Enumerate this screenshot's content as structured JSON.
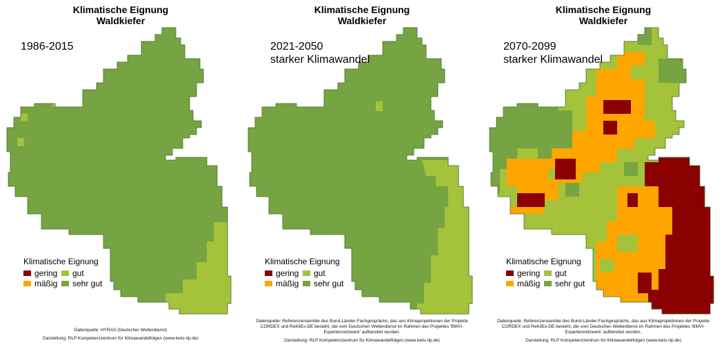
{
  "colors": {
    "gering": "#8b0000",
    "maessig": "#ffa500",
    "gut": "#a4c23a",
    "sehr_gut": "#77a442",
    "border": "#3d6b2a"
  },
  "legend": {
    "title": "Klimatische Eignung",
    "items": [
      "gering",
      "mäßig",
      "gut",
      "sehr gut"
    ]
  },
  "panels": [
    {
      "title_line1": "Klimatische Eignung",
      "title_line2": "Waldkiefer",
      "period": "1986-2015",
      "scenario": "",
      "credit_source": "Datenquelle: HYRAS (Deutscher Wetterdienst)",
      "credit_display": "Darstellung: RLP Kompetenzzentrum für Klimawandelfolgen (www.kwis-rlp.de)"
    },
    {
      "title_line1": "Klimatische Eignung",
      "title_line2": "Waldkiefer",
      "period": "2021-2050",
      "scenario": "starker Klimawandel",
      "credit_source": "Datenquelle: Referenzensemble des Bund-Länder-Fachgesprächs, das aus Klimaprojektionen der Projekte CORDEX und ReKliEs-DE besteht, die vom Deutschen Wetterdienst im Rahmen des Projektes 'BMVI-Expertennetzwerk' aufbereitet wurden.",
      "credit_display": "Darstellung: RLP Kompetenzzentrum für Klimawandelfolgen (www.kwis-rlp.de)"
    },
    {
      "title_line1": "Klimatische Eignung",
      "title_line2": "Waldkiefer",
      "period": "2070-2099",
      "scenario": "starker Klimawandel",
      "credit_source": "Datenquelle: Referenzensemble des Bund-Länder-Fachgesprächs, das aus Klimaprojektionen der Projekte CORDEX und ReKliEs-DE besteht, die vom Deutschen Wetterdienst im Rahmen des Projektes 'BMVI-Expertennetzwerk' aufbereitet wurden.",
      "credit_display": "Darstellung: RLP Kompetenzzentrum für Klimawandelfolgen (www.kwis-rlp.de)"
    }
  ]
}
